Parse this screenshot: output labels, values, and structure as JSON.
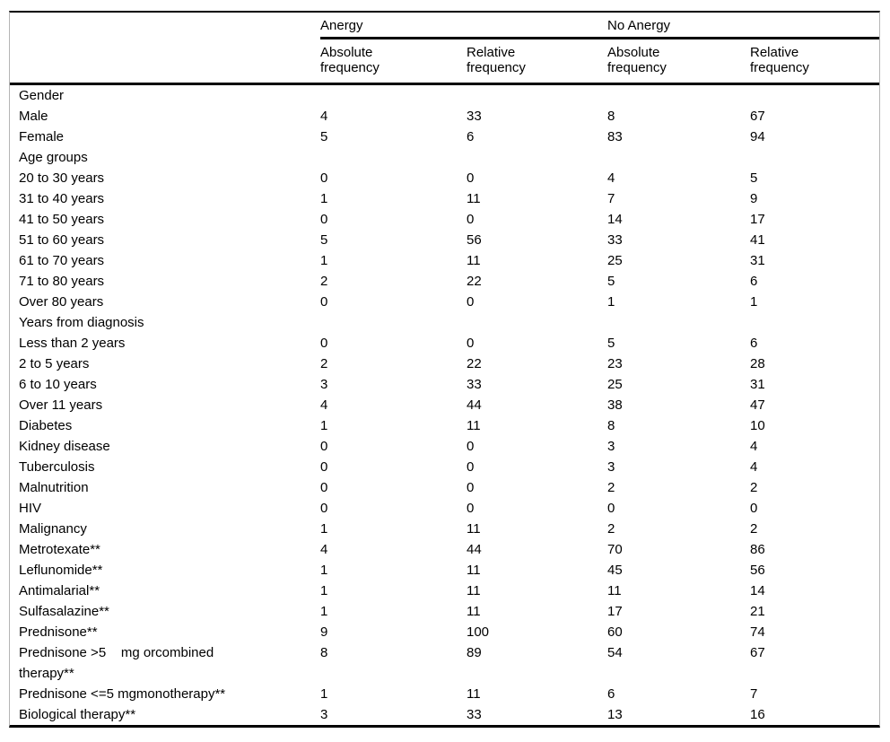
{
  "table": {
    "group_headers": [
      "Anergy",
      "No Anergy"
    ],
    "column_headers": [
      "Absolute\nfrequency",
      "Relative\nfrequency",
      "Absolute\nfrequency",
      "Relative\nfrequency"
    ],
    "rows": [
      {
        "label": "Gender",
        "section": true,
        "values": [
          "",
          "",
          "",
          ""
        ]
      },
      {
        "label": "Male",
        "section": false,
        "values": [
          "4",
          "33",
          "8",
          "67"
        ]
      },
      {
        "label": "Female",
        "section": false,
        "values": [
          "5",
          "6",
          "83",
          "94"
        ]
      },
      {
        "label": "Age groups",
        "section": true,
        "values": [
          "",
          "",
          "",
          ""
        ]
      },
      {
        "label": "20 to 30 years",
        "section": false,
        "values": [
          "0",
          "0",
          "4",
          "5"
        ]
      },
      {
        "label": "31 to 40 years",
        "section": false,
        "values": [
          "1",
          "11",
          "7",
          "9"
        ]
      },
      {
        "label": "41 to 50 years",
        "section": false,
        "values": [
          "0",
          "0",
          "14",
          "17"
        ]
      },
      {
        "label": "51 to 60 years",
        "section": false,
        "values": [
          "5",
          "56",
          "33",
          "41"
        ]
      },
      {
        "label": "61 to 70 years",
        "section": false,
        "values": [
          "1",
          "11",
          "25",
          "31"
        ]
      },
      {
        "label": "71 to 80 years",
        "section": false,
        "values": [
          "2",
          "22",
          "5",
          "6"
        ]
      },
      {
        "label": "Over 80 years",
        "section": false,
        "values": [
          "0",
          "0",
          "1",
          "1"
        ]
      },
      {
        "label": "Years from diagnosis",
        "section": true,
        "values": [
          "",
          "",
          "",
          ""
        ]
      },
      {
        "label": "Less than 2 years",
        "section": false,
        "values": [
          "0",
          "0",
          "5",
          "6"
        ]
      },
      {
        "label": "2 to 5 years",
        "section": false,
        "values": [
          "2",
          "22",
          "23",
          "28"
        ]
      },
      {
        "label": "6 to 10 years",
        "section": false,
        "values": [
          "3",
          "33",
          "25",
          "31"
        ]
      },
      {
        "label": "Over 11 years",
        "section": false,
        "values": [
          "4",
          "44",
          "38",
          "47"
        ]
      },
      {
        "label": "Diabetes",
        "section": false,
        "values": [
          "1",
          "11",
          "8",
          "10"
        ]
      },
      {
        "label": "Kidney disease",
        "section": false,
        "values": [
          "0",
          "0",
          "3",
          "4"
        ]
      },
      {
        "label": "Tuberculosis",
        "section": false,
        "values": [
          "0",
          "0",
          "3",
          "4"
        ]
      },
      {
        "label": "Malnutrition",
        "section": false,
        "values": [
          "0",
          "0",
          "2",
          "2"
        ]
      },
      {
        "label": "HIV",
        "section": false,
        "values": [
          "0",
          "0",
          "0",
          "0"
        ]
      },
      {
        "label": "Malignancy",
        "section": false,
        "values": [
          "1",
          "11",
          "2",
          "2"
        ]
      },
      {
        "label": "Metrotexate**",
        "section": false,
        "values": [
          "4",
          "44",
          "70",
          "86"
        ]
      },
      {
        "label": "Leflunomide**",
        "section": false,
        "values": [
          "1",
          "11",
          "45",
          "56"
        ]
      },
      {
        "label": "Antimalarial**",
        "section": false,
        "values": [
          "1",
          "11",
          "11",
          "14"
        ]
      },
      {
        "label": "Sulfasalazine**",
        "section": false,
        "values": [
          "1",
          "11",
          "17",
          "21"
        ]
      },
      {
        "label": "Prednisone**",
        "section": false,
        "values": [
          "9",
          "100",
          "60",
          "74"
        ]
      },
      {
        "label": "Prednisone >5    mg orcombined\ntherapy**",
        "section": false,
        "values": [
          "8",
          "89",
          "54",
          "67"
        ]
      },
      {
        "label": "Prednisone <=5 mgmonotherapy**",
        "section": false,
        "values": [
          "1",
          "11",
          "6",
          "7"
        ]
      },
      {
        "label": "Biological therapy**",
        "section": false,
        "values": [
          "3",
          "33",
          "13",
          "16"
        ]
      }
    ],
    "colors": {
      "rule": "#000000",
      "side_frame": "#b5b5b5",
      "text": "#000000",
      "background": "#ffffff"
    }
  }
}
